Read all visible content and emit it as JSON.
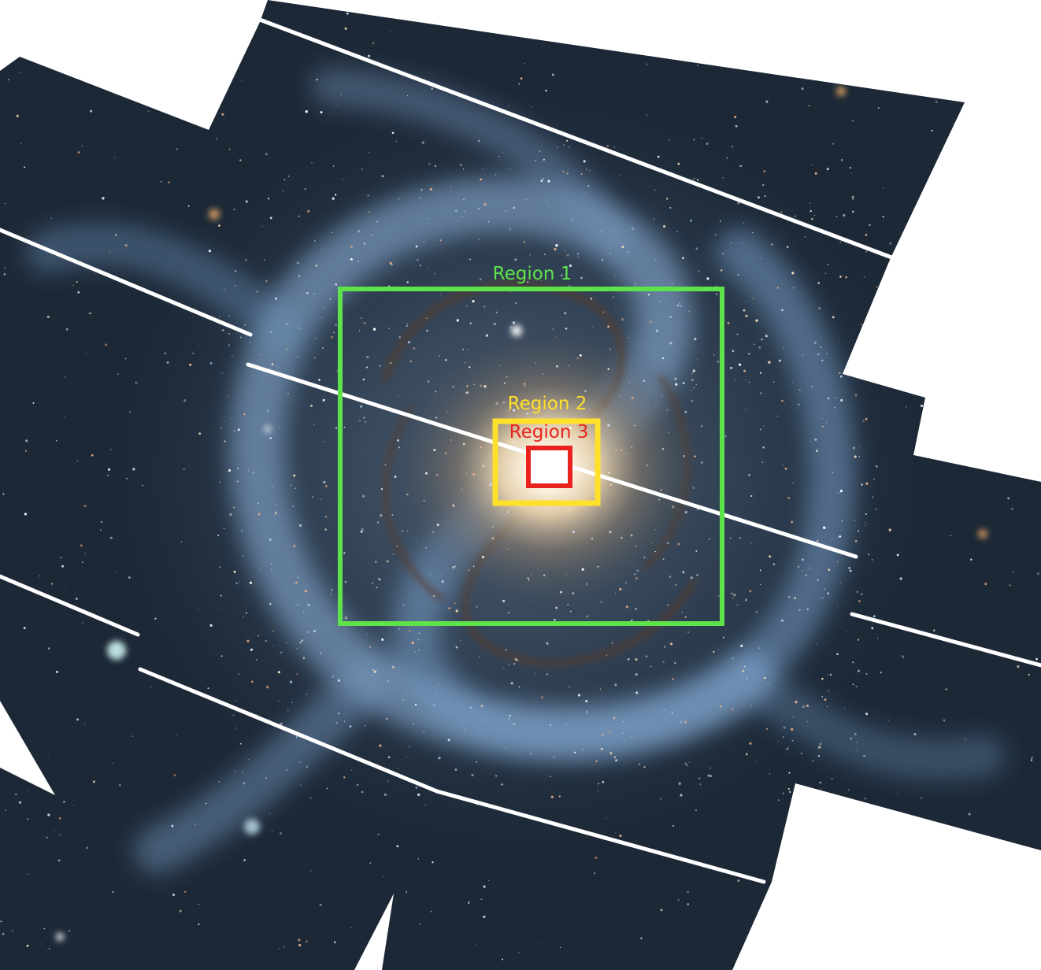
{
  "image": {
    "subject": "spiral-galaxy-mosaic",
    "palette": {
      "background": "#ffffff",
      "sky": "#1c2836",
      "arm_blue": "#8fb4dd",
      "core": "#fff4dc",
      "dust": "#5a3a28",
      "gap_line": "#ffffff"
    }
  },
  "regions": [
    {
      "label": "Region 1",
      "color": "#5ee34a"
    },
    {
      "label": "Region 2",
      "color": "#ffe02a"
    },
    {
      "label": "Region 3",
      "color": "#e8231f"
    }
  ]
}
